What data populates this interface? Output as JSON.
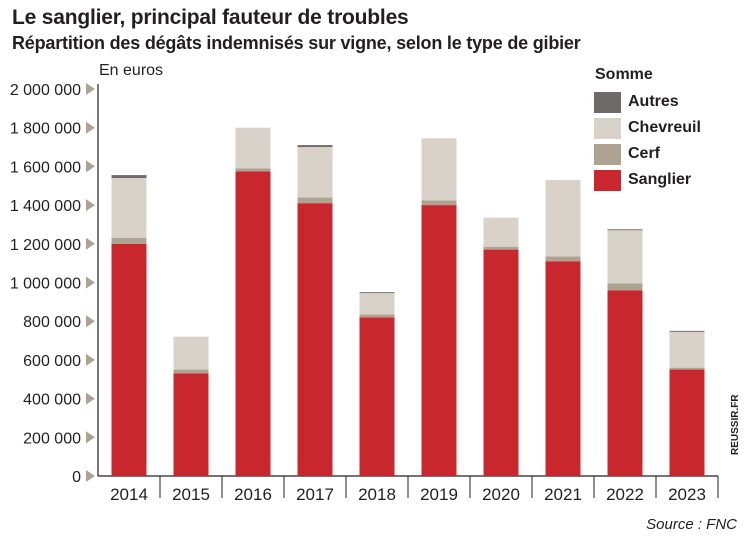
{
  "header": {
    "title": "Le sanglier, principal fauteur de troubles",
    "subtitle": "Répartition des dégâts indemnisés sur vigne, selon le type de gibier",
    "unit": "En euros"
  },
  "legend": {
    "title": "Somme",
    "items": [
      {
        "label": "Autres",
        "color": "#6d6a69"
      },
      {
        "label": "Chevreuil",
        "color": "#d9d2c8"
      },
      {
        "label": "Cerf",
        "color": "#aea391"
      },
      {
        "label": "Sanglier",
        "color": "#c8272d"
      }
    ]
  },
  "footer": {
    "source": "Source : FNC",
    "credit": "REUSSIR.FR"
  },
  "chart_data": {
    "type": "bar",
    "stacked": true,
    "title": "Le sanglier, principal fauteur de troubles",
    "subtitle": "Répartition des dégâts indemnisés sur vigne, selon le type de gibier",
    "ylabel": "En euros",
    "ylim": [
      0,
      2000000
    ],
    "yticks": [
      0,
      200000,
      400000,
      600000,
      800000,
      1000000,
      1200000,
      1400000,
      1600000,
      1800000,
      2000000
    ],
    "ytick_labels": [
      "0",
      "200 000",
      "400 000",
      "600 000",
      "800 000",
      "1 000 000",
      "1 200 000",
      "1 400 000",
      "1 600 000",
      "1 800 000",
      "2 000 000"
    ],
    "categories": [
      "2014",
      "2015",
      "2016",
      "2017",
      "2018",
      "2019",
      "2020",
      "2021",
      "2022",
      "2023"
    ],
    "legend_position": "top-right",
    "grid": false,
    "series": [
      {
        "name": "Sanglier",
        "color": "#c8272d",
        "values": [
          1200000,
          530000,
          1575000,
          1410000,
          820000,
          1400000,
          1170000,
          1110000,
          960000,
          550000
        ]
      },
      {
        "name": "Cerf",
        "color": "#aea391",
        "values": [
          30000,
          20000,
          15000,
          30000,
          15000,
          25000,
          15000,
          25000,
          35000,
          10000
        ]
      },
      {
        "name": "Chevreuil",
        "color": "#d9d2c8",
        "values": [
          310000,
          170000,
          210000,
          260000,
          110000,
          320000,
          150000,
          395000,
          275000,
          185000
        ]
      },
      {
        "name": "Autres",
        "color": "#6d6a69",
        "values": [
          15000,
          0,
          0,
          10000,
          5000,
          0,
          0,
          0,
          5000,
          5000
        ]
      }
    ]
  }
}
